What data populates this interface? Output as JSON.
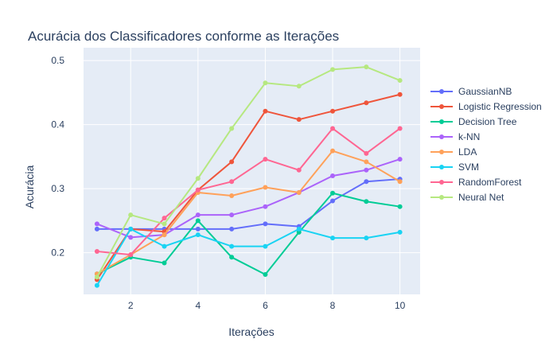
{
  "chart_data": {
    "type": "line",
    "title": "Acurácia dos Classificadores conforme as Iterações",
    "xlabel": "Iterações",
    "ylabel": "Acurácia",
    "x": [
      1,
      2,
      3,
      4,
      5,
      6,
      7,
      8,
      9,
      10
    ],
    "xlim": [
      0.6,
      10.6
    ],
    "ylim": [
      0.135,
      0.52
    ],
    "xticks": [
      2,
      4,
      6,
      8,
      10
    ],
    "yticks": [
      0.2,
      0.3,
      0.4,
      0.5
    ],
    "xtick_labels": [
      "2",
      "4",
      "6",
      "8",
      "10"
    ],
    "ytick_labels": [
      "0.2",
      "0.3",
      "0.4",
      "0.5"
    ],
    "grid": true,
    "legend_position": "right",
    "background": "#E5ECF6",
    "series": [
      {
        "name": "GaussianNB",
        "color": "#636EFA",
        "values": [
          0.237,
          0.237,
          0.237,
          0.237,
          0.237,
          0.245,
          0.241,
          0.281,
          0.311,
          0.315
        ]
      },
      {
        "name": "Logistic Regression",
        "color": "#EF553B",
        "values": [
          0.158,
          0.237,
          0.233,
          0.298,
          0.342,
          0.421,
          0.408,
          0.421,
          0.434,
          0.447
        ]
      },
      {
        "name": "Decision Tree",
        "color": "#00CC96",
        "values": [
          0.167,
          0.193,
          0.184,
          0.25,
          0.193,
          0.166,
          0.232,
          0.293,
          0.28,
          0.272
        ]
      },
      {
        "name": "k-NN",
        "color": "#AB63FA",
        "values": [
          0.245,
          0.224,
          0.228,
          0.259,
          0.259,
          0.272,
          0.294,
          0.32,
          0.329,
          0.346
        ]
      },
      {
        "name": "LDA",
        "color": "#FFA15A",
        "values": [
          0.167,
          0.197,
          0.228,
          0.294,
          0.289,
          0.302,
          0.294,
          0.359,
          0.342,
          0.311
        ]
      },
      {
        "name": "SVM",
        "color": "#19D3F3",
        "values": [
          0.149,
          0.237,
          0.21,
          0.228,
          0.21,
          0.21,
          0.237,
          0.223,
          0.223,
          0.232
        ]
      },
      {
        "name": "RandomForest",
        "color": "#FF6692",
        "values": [
          0.202,
          0.197,
          0.254,
          0.298,
          0.311,
          0.346,
          0.329,
          0.394,
          0.355,
          0.394
        ]
      },
      {
        "name": "Neural Net",
        "color": "#B6E880",
        "values": [
          0.162,
          0.259,
          0.245,
          0.316,
          0.394,
          0.465,
          0.46,
          0.486,
          0.49,
          0.469
        ]
      }
    ]
  }
}
